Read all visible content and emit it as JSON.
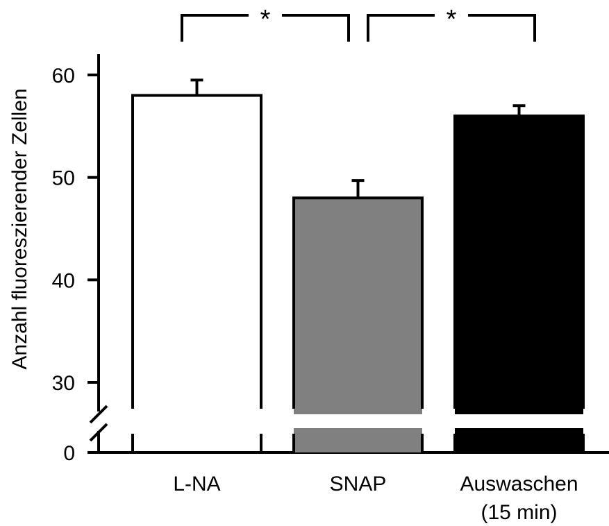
{
  "chart_data": {
    "type": "bar",
    "categories": [
      "L-NA",
      "SNAP",
      "Auswaschen"
    ],
    "category_sublabels": [
      "",
      "",
      "(15 min)"
    ],
    "values": [
      58,
      48,
      56
    ],
    "errors": [
      1.5,
      1.7,
      1.0
    ],
    "bar_colors": [
      "#ffffff",
      "#808080",
      "#000000"
    ],
    "ylabel": "Anzahl fluoreszierender Zellen",
    "yticks": [
      60,
      50,
      40,
      30
    ],
    "ytick_labels": [
      "60",
      "50",
      "40",
      "30"
    ],
    "ylim": [
      30,
      60
    ],
    "axis_break": true,
    "break_baseline_label": "0",
    "significance": [
      {
        "from": 0,
        "to": 1,
        "label": "*"
      },
      {
        "from": 1,
        "to": 2,
        "label": "*"
      }
    ],
    "grid": false
  }
}
